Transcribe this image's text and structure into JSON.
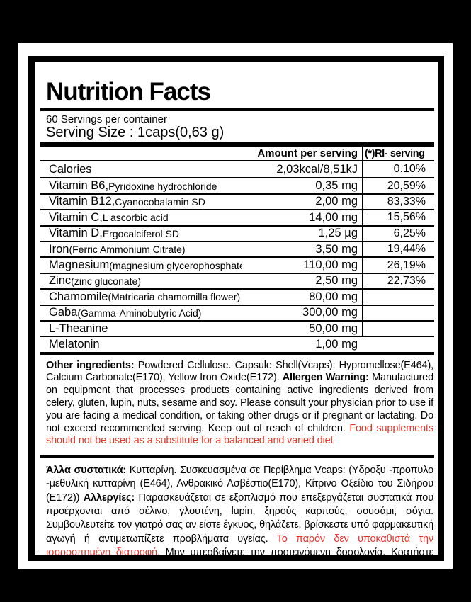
{
  "header": {
    "title": "Nutrition Facts",
    "servings_per_container": "60 Servings per container",
    "serving_size": "Serving Size : 1caps(0,63 g)"
  },
  "table": {
    "columns": {
      "amount": "Amount per serving",
      "ri": "(*)RI- serving"
    },
    "rows": [
      {
        "main": "Calories",
        "sub": "",
        "amount": "2,03kcal/8,51kJ",
        "ri": "0.10%"
      },
      {
        "main": "Vitamin B6,",
        "sub": "Pyridoxine hydrochloride",
        "amount": "0,35 mg",
        "ri": "20,59%"
      },
      {
        "main": "Vitamin B12,",
        "sub": "Cyanocobalamin SD",
        "amount": "2,00 mg",
        "ri": "83,33%"
      },
      {
        "main": "Vitamin C,",
        "sub": "L ascorbic acid",
        "amount": "14,00 mg",
        "ri": "15,56%"
      },
      {
        "main": "Vitamin D,",
        "sub": "Ergocalciferol SD",
        "amount": "1,25 µg",
        "ri": "6,25%"
      },
      {
        "main": "Iron",
        "sub": "(Ferric Ammonium Citrate)",
        "amount": "3,50 mg",
        "ri": "19,44%"
      },
      {
        "main": "Magnesium",
        "sub": "(magnesium glycerophosphate)",
        "amount": "110,00 mg",
        "ri": "26,19%"
      },
      {
        "main": "Zinc",
        "sub": "(zinc gluconate)",
        "amount": "2,50 mg",
        "ri": "22,73%"
      },
      {
        "main": "Chamomile",
        "sub": "(Matricaria chamomilla flower)",
        "amount": "80,00 mg",
        "ri": ""
      },
      {
        "main": "Gaba",
        "sub": "(Gamma-Aminobutyric Acid)",
        "amount": "300,00 mg",
        "ri": ""
      },
      {
        "main": "L-Theanine",
        "sub": "",
        "amount": "50,00 mg",
        "ri": ""
      },
      {
        "main": "Melatonin",
        "sub": "",
        "amount": "1,00 mg",
        "ri": ""
      }
    ]
  },
  "english_section": {
    "bold1": "Other ingredients:",
    "text1": " Powdered Cellulose. Capsule Shell(Vcaps): Hypromellose(E464), Calcium Carbonate(E170), Yellow Iron Oxide(E172). ",
    "bold2": "Allergen Warning:",
    "text2": " Manufactured on equipment that processes products containing active ingredients derived from celery, gluten, lupin, nuts, sesame and soy. Please consult your physician prior to use if you are facing a medical condition, or taking other drugs or if pregnant or lactating. Do not exceed recommended serving. Keep out of reach of children. ",
    "red_warning": "Food supplements should not be used as a substitute for a balanced and varied diet"
  },
  "greek_section": {
    "bold1": "Άλλα συστατικά:",
    "text1": " Κυτταρίνη. Συσκευασμένα σε Περίβλημα Vcaps: (Υδροξυ -προπυλο -μεθυλική κυτταρίνη (Ε464), Ανθρακικό Ασβέστιο(Ε170), Κίτρινο Οξείδιο του Σιδήρου (Ε172)) ",
    "bold2": "Αλλεργίες:",
    "text2": " Παρασκευάζεται σε εξοπλισμό που επεξεργάζεται συστατικά που προέρχονται από σέλινο, γλουτένη, lupin, ξηρούς καρπούς, σουσάμι, σόγια. Συμβουλευτείτε τον γιατρό σας αν είστε έγκυος, θηλάζετε, βρίσκεστε υπό φαρμακευτική αγωγή ή αντιμετωπίζετε προβλήματα υγείας. ",
    "red_warning": "Το παρόν δεν υποκαθιστά την ισορροπημένη διατροφή.",
    "text3": " Μην υπερβαίνετε την προτεινόμενη δοσολογία. Κρατήστε μακριά από παιδιά."
  },
  "colors": {
    "warning_red": "#e8352b",
    "label_black": "#000000",
    "panel_white": "#ffffff"
  }
}
